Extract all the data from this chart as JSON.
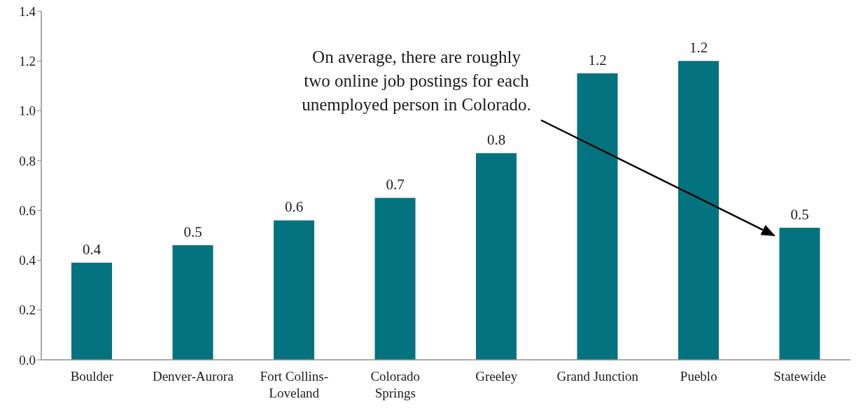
{
  "chart_data": {
    "type": "bar",
    "categories": [
      "Boulder",
      "Denver-Aurora",
      "Fort Collins-Loveland",
      "Colorado Springs",
      "Greeley",
      "Grand Junction",
      "Pueblo",
      "Statewide"
    ],
    "values": [
      0.39,
      0.46,
      0.56,
      0.65,
      0.83,
      1.15,
      1.2,
      0.53
    ],
    "value_labels": [
      "0.4",
      "0.5",
      "0.6",
      "0.7",
      "0.8",
      "1.2",
      "1.2",
      "0.5"
    ],
    "color": "#03737f",
    "ylim": [
      0,
      1.4
    ],
    "yticks": [
      {
        "value": 0,
        "label": "0.0"
      },
      {
        "value": 0.2,
        "label": "0.2"
      },
      {
        "value": 0.4,
        "label": "0.4"
      },
      {
        "value": 0.6,
        "label": "0.6"
      },
      {
        "value": 0.8,
        "label": "0.8"
      },
      {
        "value": 1,
        "label": "1.0"
      },
      {
        "value": 1.2,
        "label": "1.2"
      },
      {
        "value": 1.4,
        "label": "1.4"
      }
    ],
    "annotations": [
      "On average, there are roughly two online job postings for each unemployed person in Colorado."
    ]
  }
}
